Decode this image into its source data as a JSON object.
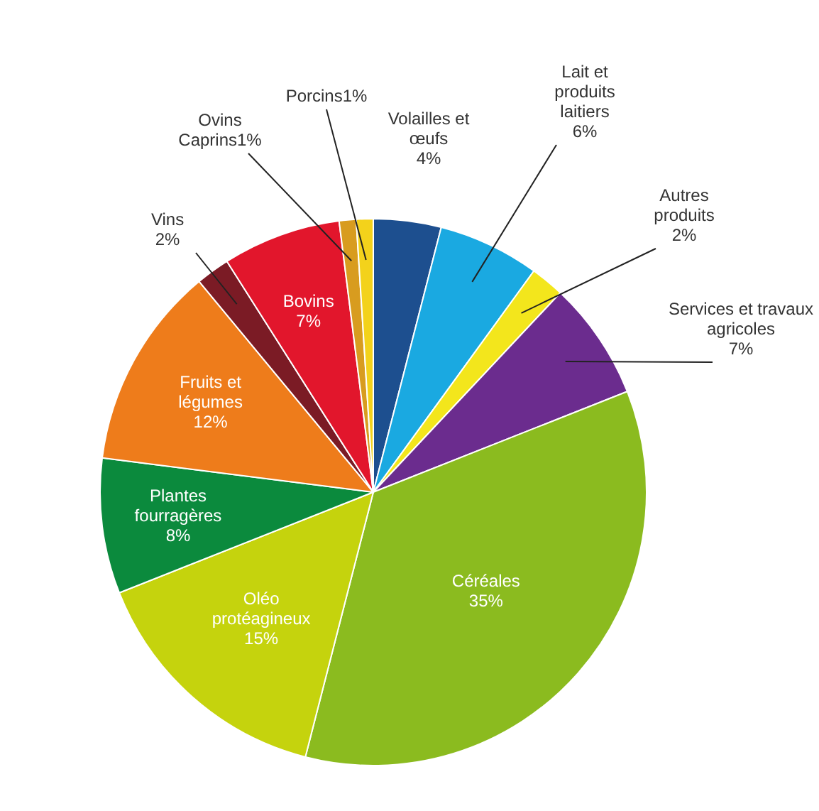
{
  "chart_data": {
    "type": "pie",
    "categories": [
      "Volailles et œufs",
      "Lait et produits laitiers",
      "Autres produits",
      "Services et travaux agricoles",
      "Céréales",
      "Oléo protéagineux",
      "Plantes fourragères",
      "Fruits et légumes",
      "Vins",
      "Bovins",
      "Ovins Caprins",
      "Porcins"
    ],
    "values": [
      4,
      6,
      2,
      7,
      35,
      15,
      8,
      12,
      2,
      7,
      1,
      1
    ],
    "value_labels": [
      "4%",
      "6%",
      "2%",
      "7%",
      "35%",
      "15%",
      "8%",
      "12%",
      "2%",
      "7%",
      "1%",
      "1%"
    ],
    "colors": [
      "#1d4f8f",
      "#1aa9e1",
      "#f3e61c",
      "#6b2c8e",
      "#8bbb1f",
      "#c5d30d",
      "#0b8a3d",
      "#ee7c1b",
      "#7b1b25",
      "#e2162c",
      "#d89c1f",
      "#f3d21b"
    ],
    "legend": false
  }
}
